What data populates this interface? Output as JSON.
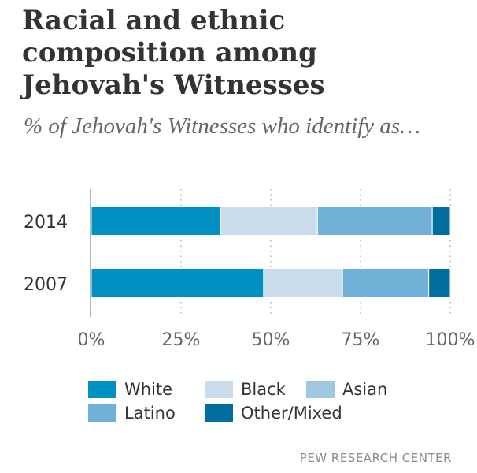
{
  "title": "Racial and ethnic composition among Jehovah's Witnesses",
  "subtitle": "% of Jehovah's Witnesses who identify as…",
  "source": "PEW RESEARCH CENTER",
  "colors": {
    "White": "#0090c2",
    "Black": "#c9ddec",
    "Asian": "#9ec8e2",
    "Latino": "#70b0d6",
    "Other/Mixed": "#006e9f"
  },
  "legend": [
    {
      "label": "White",
      "color": "#0090c2"
    },
    {
      "label": "Black",
      "color": "#c9ddec"
    },
    {
      "label": "Asian",
      "color": "#9ec8e2"
    },
    {
      "label": "Latino",
      "color": "#70b0d6"
    },
    {
      "label": "Other/Mixed",
      "color": "#006e9f"
    }
  ],
  "chart_data": {
    "type": "bar",
    "orientation": "horizontal",
    "stacked": true,
    "categories": [
      "2014",
      "2007"
    ],
    "series": [
      {
        "name": "White",
        "values": [
          36,
          48
        ]
      },
      {
        "name": "Black",
        "values": [
          27,
          22
        ]
      },
      {
        "name": "Asian",
        "values": [
          0,
          0
        ]
      },
      {
        "name": "Latino",
        "values": [
          32,
          24
        ]
      },
      {
        "name": "Other/Mixed",
        "values": [
          5,
          6
        ]
      }
    ],
    "xlim": [
      0,
      100
    ],
    "xticks": [
      0,
      25,
      50,
      75,
      100
    ],
    "xtick_labels": [
      "0%",
      "25%",
      "50%",
      "75%",
      "100%"
    ],
    "grid": true,
    "legend_position": "bottom"
  }
}
